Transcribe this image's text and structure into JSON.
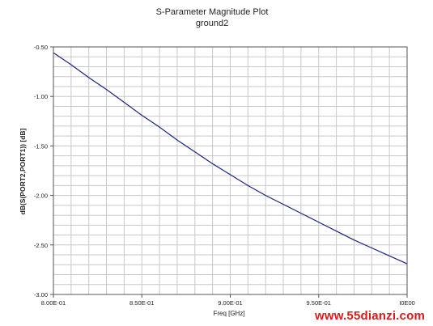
{
  "chart_data": {
    "type": "line",
    "title": "S-Parameter Magnitude Plot",
    "subtitle": "ground2",
    "xlabel": "Freq [GHz]",
    "ylabel": "dB(S(PORT2,PORT1)) [dB]",
    "xlim": [
      0.8,
      1.0
    ],
    "ylim": [
      -3.0,
      -0.5
    ],
    "x_tick_labels": [
      "8.00E-01",
      "8.50E-01",
      "9.00E-01",
      "9.50E-01",
      "I0E00"
    ],
    "y_tick_labels": [
      "-0.50",
      "-1.00",
      "-1.50",
      "-2.00",
      "-2.50",
      "-3.00"
    ],
    "grid": true,
    "series": [
      {
        "color": "#1a237e",
        "x": [
          0.8,
          0.81,
          0.82,
          0.83,
          0.84,
          0.85,
          0.86,
          0.87,
          0.88,
          0.89,
          0.9,
          0.91,
          0.92,
          0.93,
          0.94,
          0.95,
          0.96,
          0.97,
          0.98,
          0.99,
          1.0
        ],
        "y": [
          -0.56,
          -0.68,
          -0.81,
          -0.93,
          -1.06,
          -1.19,
          -1.31,
          -1.44,
          -1.56,
          -1.68,
          -1.79,
          -1.9,
          -2.0,
          -2.09,
          -2.18,
          -2.27,
          -2.36,
          -2.45,
          -2.53,
          -2.61,
          -2.69
        ]
      }
    ]
  },
  "watermark": "www.55dianzi.com"
}
